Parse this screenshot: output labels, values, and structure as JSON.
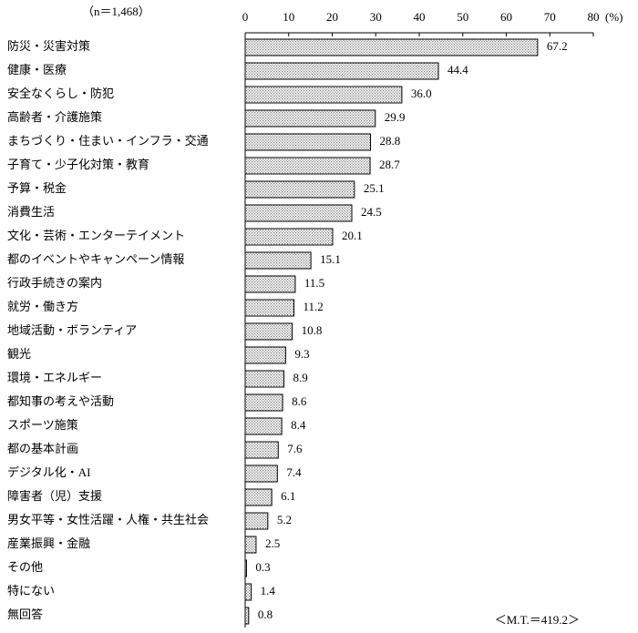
{
  "chart_data": {
    "type": "bar",
    "orientation": "horizontal",
    "note": "（n＝1,468）",
    "x_unit": "(%)",
    "annotation": "＜M.T.＝419.2＞",
    "categories": [
      "防災・災害対策",
      "健康・医療",
      "安全なくらし・防犯",
      "高齢者・介護施策",
      "まちづくり・住まい・インフラ・交通",
      "子育て・少子化対策・教育",
      "予算・税金",
      "消費生活",
      "文化・芸術・エンターテイメント",
      "都のイベントやキャンペーン情報",
      "行政手続きの案内",
      "就労・働き方",
      "地域活動・ボランティア",
      "観光",
      "環境・エネルギー",
      "都知事の考えや活動",
      "スポーツ施策",
      "都の基本計画",
      "デジタル化・AI",
      "障害者（児）支援",
      "男女平等・女性活躍・人権・共生社会",
      "産業振興・金融",
      "その他",
      "特にない",
      "無回答"
    ],
    "values": [
      67.2,
      44.4,
      36.0,
      29.9,
      28.8,
      28.7,
      25.1,
      24.5,
      20.1,
      15.1,
      11.5,
      11.2,
      10.8,
      9.3,
      8.9,
      8.6,
      8.4,
      7.6,
      7.4,
      6.1,
      5.2,
      2.5,
      0.3,
      1.4,
      0.8
    ],
    "value_labels": [
      "67.2",
      "44.4",
      "36.0",
      "29.9",
      "28.8",
      "28.7",
      "25.1",
      "24.5",
      "20.1",
      "15.1",
      "11.5",
      "11.2",
      "10.8",
      "9.3",
      "8.9",
      "8.6",
      "8.4",
      "7.6",
      "7.4",
      "6.1",
      "5.2",
      "2.5",
      "0.3",
      "1.4",
      "0.8"
    ],
    "color": "#777777",
    "xlim": [
      0,
      80
    ],
    "xticks": [
      0,
      10,
      20,
      30,
      40,
      50,
      60,
      70,
      80
    ]
  }
}
